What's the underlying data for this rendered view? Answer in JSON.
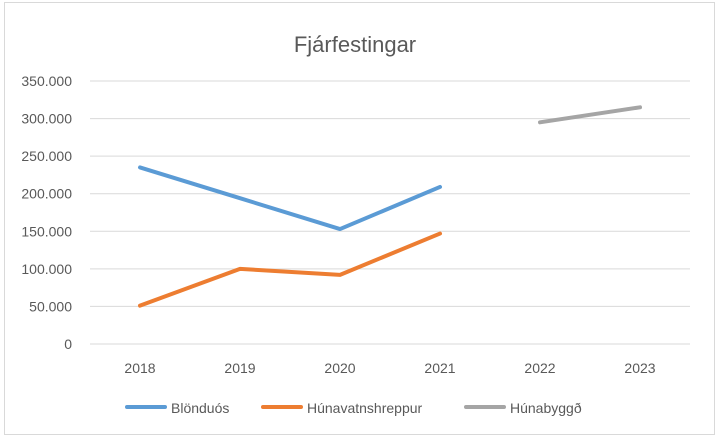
{
  "chart_data": {
    "type": "line",
    "title": "Fjárfestingar",
    "categories": [
      "2018",
      "2019",
      "2020",
      "2021",
      "2022",
      "2023"
    ],
    "yticks": [
      "0",
      "50.000",
      "100.000",
      "150.000",
      "200.000",
      "250.000",
      "300.000",
      "350.000"
    ],
    "ylim": [
      0,
      350000
    ],
    "grid": true,
    "legend_position": "bottom",
    "series": [
      {
        "name": "Blönduós",
        "color": "#5b9bd5",
        "values": [
          235000,
          194000,
          153000,
          209000,
          null,
          null
        ]
      },
      {
        "name": "Húnavatnshreppur",
        "color": "#ed7d31",
        "values": [
          51000,
          100000,
          92000,
          147000,
          null,
          null
        ]
      },
      {
        "name": "Húnabyggð",
        "color": "#a5a5a5",
        "values": [
          null,
          null,
          null,
          null,
          295000,
          315000
        ]
      }
    ]
  }
}
